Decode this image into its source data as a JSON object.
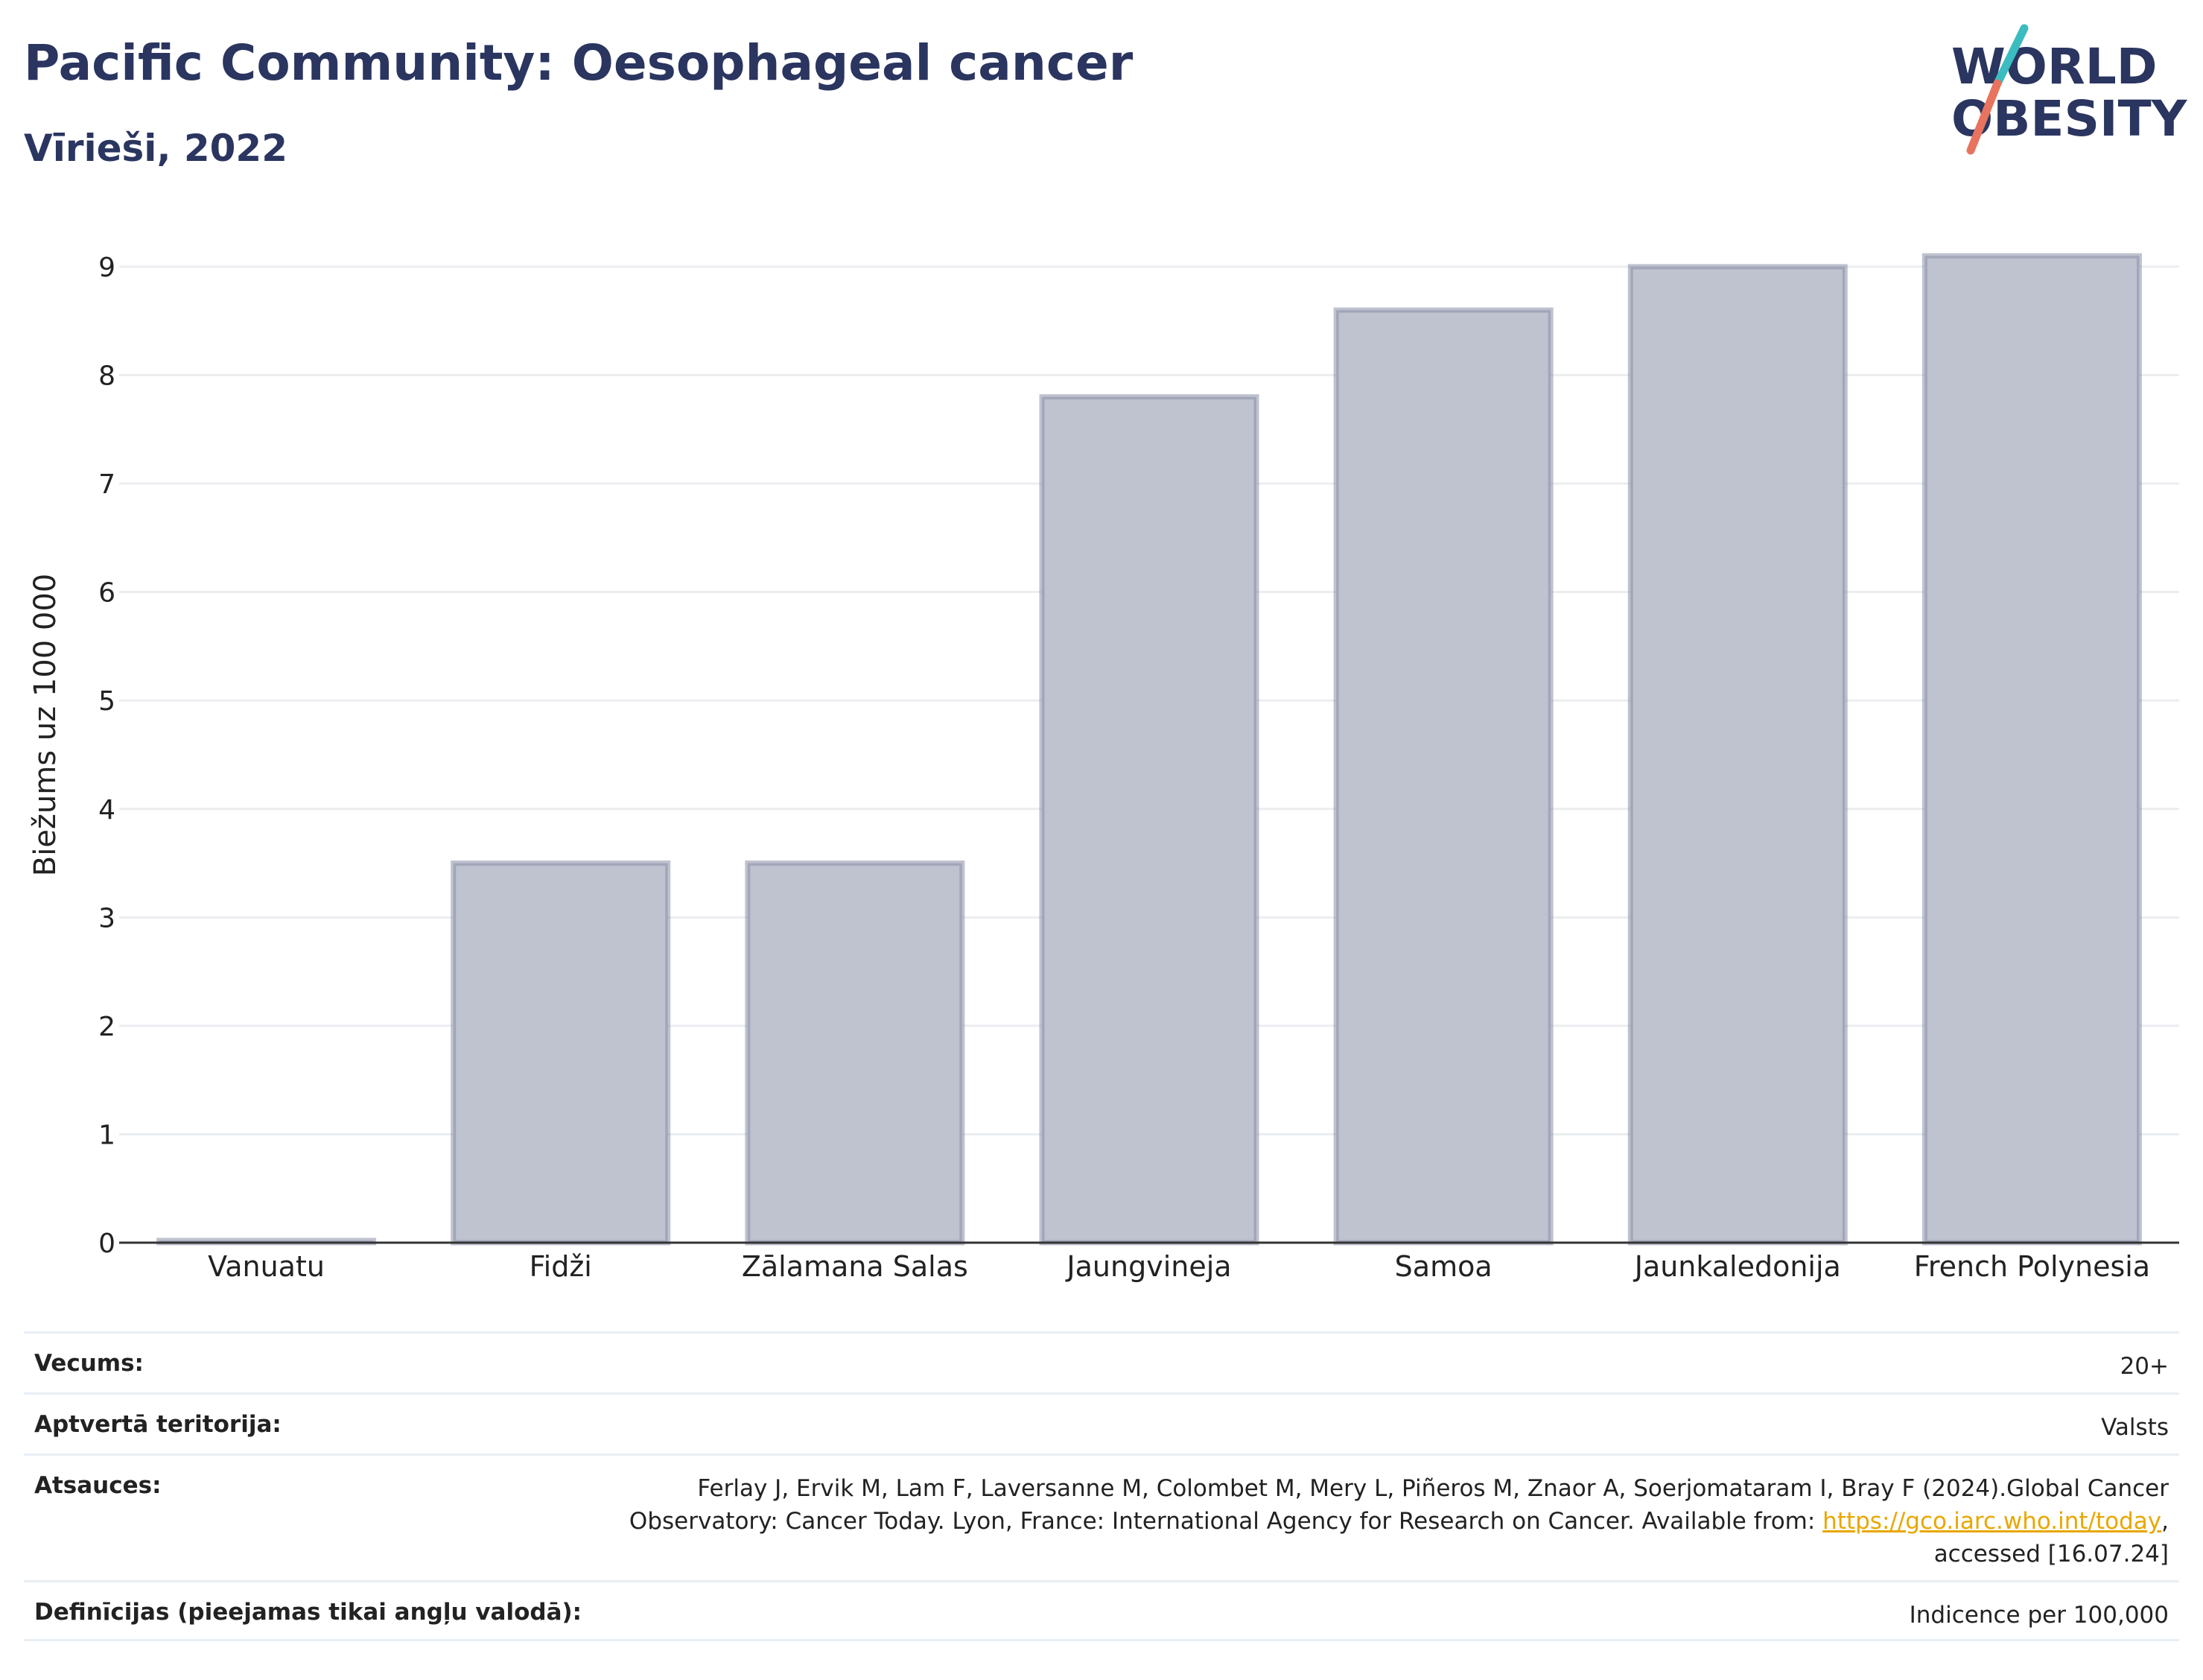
{
  "header": {
    "title": "Pacific Community: Oesophageal cancer",
    "subtitle": "Vīrieši, 2022",
    "logo_line1": "WORLD",
    "logo_line2": "OBESITY"
  },
  "chart_data": {
    "type": "bar",
    "categories": [
      "Vanuatu",
      "Fidži",
      "Zālamana Salas",
      "Jaungvineja",
      "Samoa",
      "Jaunkaledonija",
      "French Polynesia"
    ],
    "values": [
      0.02,
      3.5,
      3.5,
      7.8,
      8.6,
      9.0,
      9.1
    ],
    "ylabel": "Biežums uz 100 000",
    "xlabel": "",
    "ylim": [
      0,
      9.5
    ],
    "yticks": [
      0,
      1,
      2,
      3,
      4,
      5,
      6,
      7,
      8,
      9
    ],
    "grid": true,
    "colors": {
      "bar_fill": "#bfc2cf",
      "bar_stroke": "#8a8fa8",
      "grid": "#ebedf0",
      "axis": "#333333"
    }
  },
  "info": {
    "age_label": "Vecums:",
    "age_value": "20+",
    "area_label": "Aptvertā teritorija:",
    "area_value": "Valsts",
    "refs_label": "Atsauces:",
    "refs_line1": "Ferlay J, Ervik M, Lam F, Laversanne M, Colombet M, Mery L, Piñeros M, Znaor A, Soerjomataram I, Bray F (2024).Global Cancer",
    "refs_line2_pre": "Observatory: Cancer Today. Lyon, France: International Agency for Research on Cancer. Available from: ",
    "refs_link": "https://gco.iarc.who.int/today",
    "refs_line2_post": ",",
    "refs_line3": "accessed [16.07.24]",
    "def_label": "Definīcijas (pieejamas tikai angļu valodā):",
    "def_value": "Indicence per 100,000"
  }
}
